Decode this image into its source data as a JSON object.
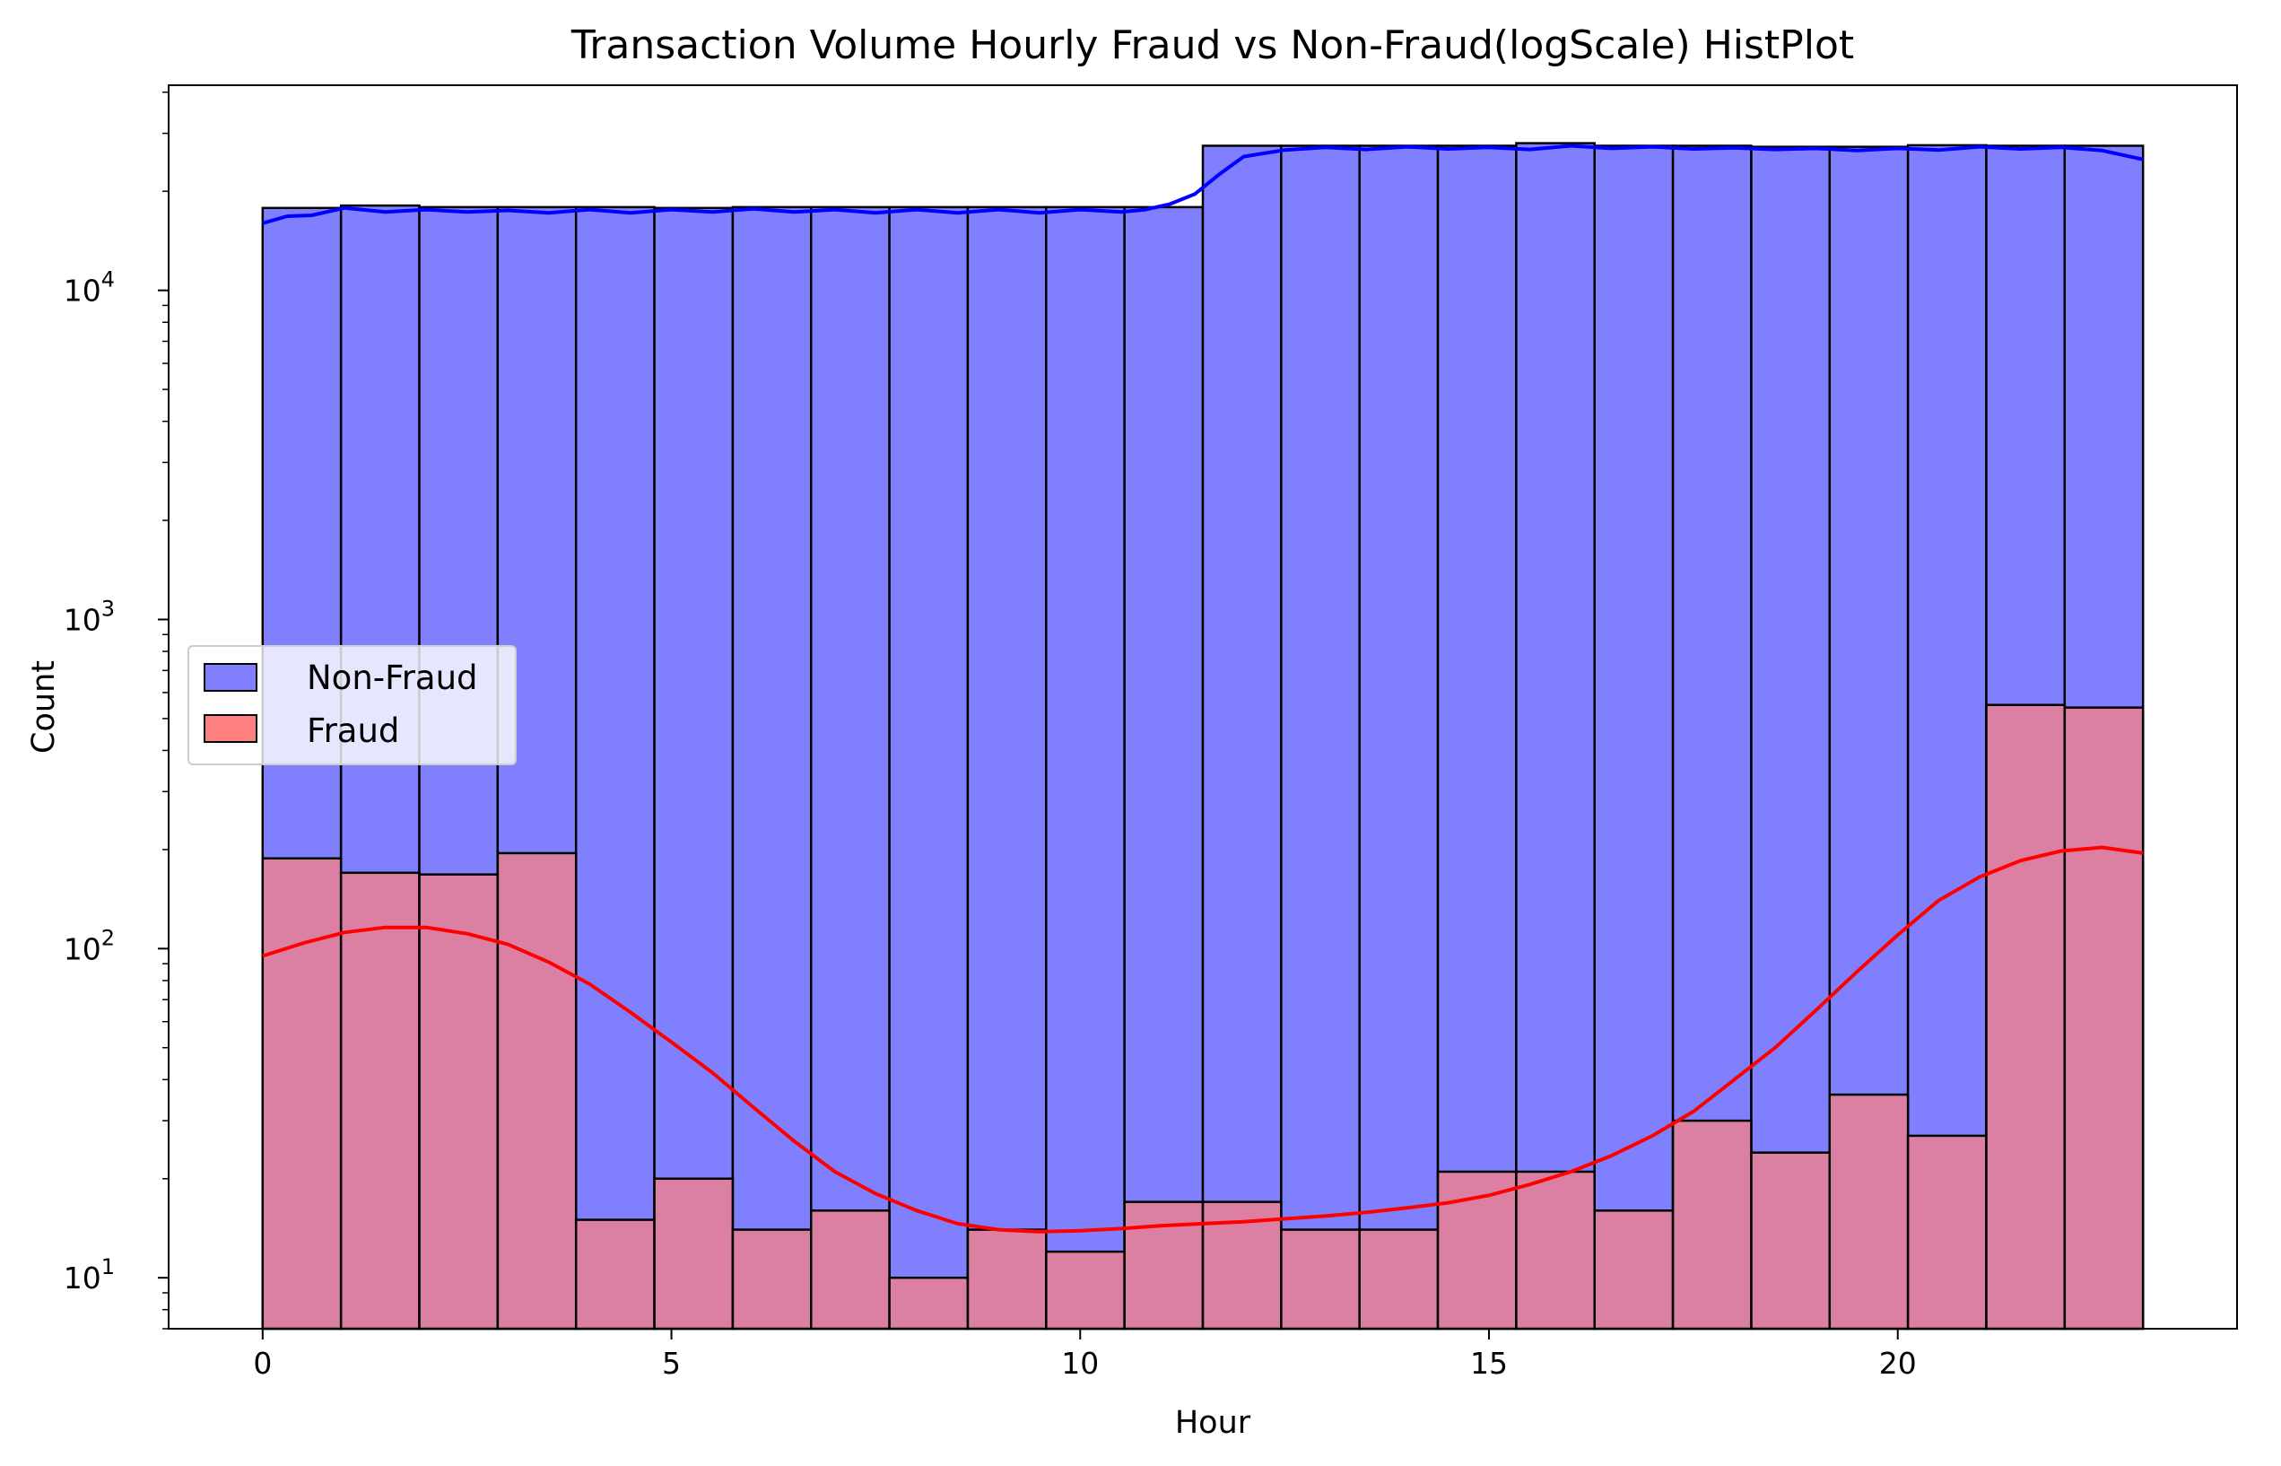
{
  "chart_data": {
    "type": "bar",
    "title": "Transaction Volume Hourly Fraud vs Non-Fraud(logScale) HistPlot",
    "xlabel": "Hour",
    "ylabel": "Count",
    "yscale": "log",
    "xlim": [
      -1.15,
      24.15
    ],
    "ylim": [
      7,
      42000
    ],
    "x_ticks": [
      0,
      5,
      10,
      15,
      20
    ],
    "y_ticks": [
      {
        "value": 10,
        "base": "10",
        "exp": "1"
      },
      {
        "value": 100,
        "base": "10",
        "exp": "2"
      },
      {
        "value": 1000,
        "base": "10",
        "exp": "3"
      },
      {
        "value": 10000,
        "base": "10",
        "exp": "4"
      }
    ],
    "bins": 24,
    "bin_range": [
      0,
      23
    ],
    "legend_position": "center-left",
    "series": [
      {
        "name": "Non-Fraud",
        "fill": "#8080ff",
        "kde_color": "#0000ff",
        "values": [
          17800,
          18100,
          17900,
          17900,
          17900,
          17800,
          17900,
          17900,
          17900,
          17900,
          17900,
          17900,
          27500,
          27500,
          27500,
          27500,
          28000,
          27500,
          27500,
          27300,
          27300,
          27600,
          27500,
          27500
        ],
        "kde": [
          [
            0,
            16000
          ],
          [
            0.3,
            16800
          ],
          [
            0.6,
            16900
          ],
          [
            1.0,
            17800
          ],
          [
            1.5,
            17300
          ],
          [
            2.0,
            17600
          ],
          [
            2.5,
            17300
          ],
          [
            3.0,
            17500
          ],
          [
            3.5,
            17200
          ],
          [
            4.0,
            17600
          ],
          [
            4.5,
            17200
          ],
          [
            5.0,
            17600
          ],
          [
            5.5,
            17300
          ],
          [
            6.0,
            17700
          ],
          [
            6.5,
            17300
          ],
          [
            7.0,
            17600
          ],
          [
            7.5,
            17200
          ],
          [
            8.0,
            17600
          ],
          [
            8.5,
            17200
          ],
          [
            9.0,
            17600
          ],
          [
            9.5,
            17200
          ],
          [
            10.0,
            17600
          ],
          [
            10.5,
            17300
          ],
          [
            10.8,
            17600
          ],
          [
            11.1,
            18300
          ],
          [
            11.4,
            19600
          ],
          [
            11.7,
            22500
          ],
          [
            12.0,
            25500
          ],
          [
            12.5,
            26700
          ],
          [
            13.0,
            27200
          ],
          [
            13.5,
            26800
          ],
          [
            14.0,
            27300
          ],
          [
            14.5,
            26900
          ],
          [
            15.0,
            27200
          ],
          [
            15.5,
            26800
          ],
          [
            16.0,
            27500
          ],
          [
            16.5,
            27000
          ],
          [
            17.0,
            27300
          ],
          [
            17.5,
            26900
          ],
          [
            18.0,
            27100
          ],
          [
            18.5,
            26800
          ],
          [
            19.0,
            27000
          ],
          [
            19.5,
            26600
          ],
          [
            20.0,
            27000
          ],
          [
            20.5,
            26700
          ],
          [
            21.0,
            27300
          ],
          [
            21.5,
            26900
          ],
          [
            22.0,
            27200
          ],
          [
            22.5,
            26600
          ],
          [
            23.0,
            25000
          ]
        ]
      },
      {
        "name": "Fraud",
        "fill": "#ff8080",
        "kde_color": "#ff0000",
        "values": [
          188,
          170,
          168,
          195,
          15,
          20,
          14,
          16,
          10,
          14,
          12,
          17,
          17,
          14,
          14,
          21,
          21,
          16,
          30,
          24,
          36,
          27,
          550,
          540
        ],
        "kde": [
          [
            0,
            95
          ],
          [
            0.5,
            104
          ],
          [
            1.0,
            112
          ],
          [
            1.5,
            116
          ],
          [
            2.0,
            116
          ],
          [
            2.5,
            111
          ],
          [
            3.0,
            103
          ],
          [
            3.5,
            91
          ],
          [
            4.0,
            78
          ],
          [
            4.5,
            64
          ],
          [
            5.0,
            52
          ],
          [
            5.5,
            42
          ],
          [
            6.0,
            33
          ],
          [
            6.5,
            26
          ],
          [
            7.0,
            21
          ],
          [
            7.5,
            18
          ],
          [
            8.0,
            16
          ],
          [
            8.5,
            14.6
          ],
          [
            9.0,
            14
          ],
          [
            9.5,
            13.8
          ],
          [
            10.0,
            13.9
          ],
          [
            10.5,
            14.1
          ],
          [
            11.0,
            14.4
          ],
          [
            11.5,
            14.6
          ],
          [
            12.0,
            14.8
          ],
          [
            12.5,
            15.1
          ],
          [
            13.0,
            15.4
          ],
          [
            13.5,
            15.8
          ],
          [
            14.0,
            16.3
          ],
          [
            14.5,
            16.9
          ],
          [
            15.0,
            17.8
          ],
          [
            15.5,
            19.2
          ],
          [
            16.0,
            21
          ],
          [
            16.5,
            23.5
          ],
          [
            17.0,
            27
          ],
          [
            17.5,
            32
          ],
          [
            18.0,
            40
          ],
          [
            18.5,
            50
          ],
          [
            19.0,
            65
          ],
          [
            19.5,
            85
          ],
          [
            20.0,
            110
          ],
          [
            20.5,
            140
          ],
          [
            21.0,
            165
          ],
          [
            21.5,
            185
          ],
          [
            22.0,
            198
          ],
          [
            22.5,
            203
          ],
          [
            23.0,
            195
          ]
        ]
      }
    ]
  }
}
